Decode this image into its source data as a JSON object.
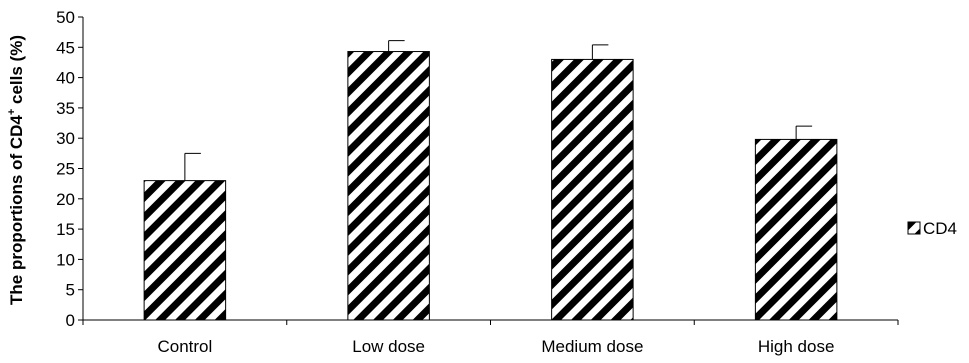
{
  "chart_data": {
    "type": "bar",
    "title": "",
    "xlabel": "",
    "ylabel": {
      "prefix": "The proportions of CD4",
      "superscript": "+",
      "suffix": " cells (%)"
    },
    "categories": [
      "Control",
      "Low dose",
      "Medium dose",
      "High dose"
    ],
    "series": [
      {
        "name": "CD4",
        "values": [
          23.0,
          44.3,
          43.0,
          29.8
        ],
        "errors": [
          4.5,
          1.8,
          2.4,
          2.2
        ]
      }
    ],
    "ylim": [
      0,
      50
    ],
    "yticks": [
      0,
      5,
      10,
      15,
      20,
      25,
      30,
      35,
      40,
      45,
      50
    ],
    "grid": false,
    "legend_position": "right",
    "fill_pattern": "diagonal-stripes",
    "colors": {
      "bar_stripe": "#000000",
      "bar_background": "#ffffff",
      "axis": "#000000"
    }
  }
}
